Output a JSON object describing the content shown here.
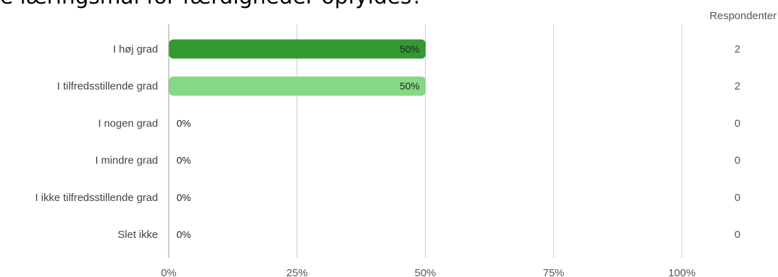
{
  "title": "e læringsmål for færdigheder opfyldes?",
  "respondents_header": "Respondenter",
  "colors": {
    "series": [
      "#339933",
      "#85d885",
      "#85d885",
      "#85d885",
      "#85d885",
      "#85d885"
    ],
    "grid": "#cccccc"
  },
  "chart_data": {
    "type": "bar",
    "orientation": "horizontal",
    "categories": [
      "I høj grad",
      "I tilfredsstillende grad",
      "I nogen grad",
      "I mindre grad",
      "I ikke tilfredsstillende grad",
      "Slet ikke"
    ],
    "values": [
      50,
      50,
      0,
      0,
      0,
      0
    ],
    "value_labels": [
      "50%",
      "50%",
      "0%",
      "0%",
      "0%",
      "0%"
    ],
    "respondents": [
      "2",
      "2",
      "0",
      "0",
      "0",
      "0"
    ],
    "x_ticks": [
      "0%",
      "25%",
      "50%",
      "75%",
      "100%"
    ],
    "xlim": [
      0,
      100
    ],
    "grid": true
  }
}
